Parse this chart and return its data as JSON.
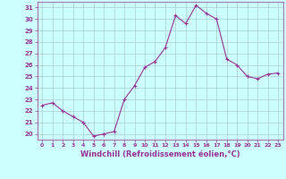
{
  "x": [
    0,
    1,
    2,
    3,
    4,
    5,
    6,
    7,
    8,
    9,
    10,
    11,
    12,
    13,
    14,
    15,
    16,
    17,
    18,
    19,
    20,
    21,
    22,
    23
  ],
  "y": [
    22.5,
    22.7,
    22.0,
    21.5,
    21.0,
    19.8,
    20.0,
    20.2,
    23.0,
    24.2,
    25.8,
    26.3,
    27.5,
    30.3,
    29.6,
    31.2,
    30.5,
    30.0,
    26.5,
    26.0,
    25.0,
    24.8,
    25.2,
    25.3
  ],
  "line_color": "#993399",
  "marker": "+",
  "marker_size": 3,
  "bg_color": "#ccffff",
  "grid_color": "#aacccc",
  "xlabel": "Windchill (Refroidissement éolien,°C)",
  "xlabel_color": "#993399",
  "ylim": [
    19.5,
    31.5
  ],
  "yticks": [
    20,
    21,
    22,
    23,
    24,
    25,
    26,
    27,
    28,
    29,
    30,
    31
  ],
  "xlim": [
    -0.5,
    23.5
  ],
  "xticks": [
    0,
    1,
    2,
    3,
    4,
    5,
    6,
    7,
    8,
    9,
    10,
    11,
    12,
    13,
    14,
    15,
    16,
    17,
    18,
    19,
    20,
    21,
    22,
    23
  ]
}
